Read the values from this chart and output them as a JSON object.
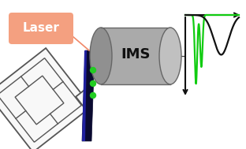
{
  "bg_color": "#ffffff",
  "ims_color": "#aaaaaa",
  "ims_label": "IMS",
  "laser_label": "Laser",
  "laser_box_color": "#f4a080",
  "laser_text_color": "#ffffff",
  "laser_line_color": "#f08868",
  "green_dot_color": "#22cc22",
  "canister_stroke": "#555555",
  "canister_fill": "#f8f8f8",
  "nozzle_dark": "#151530",
  "nozzle_blue": "#1a1a60",
  "green_peak_color": "#11cc11",
  "black_peak_color": "#111111",
  "axis_color": "#111111",
  "figsize": [
    3.12,
    1.89
  ],
  "dpi": 100
}
